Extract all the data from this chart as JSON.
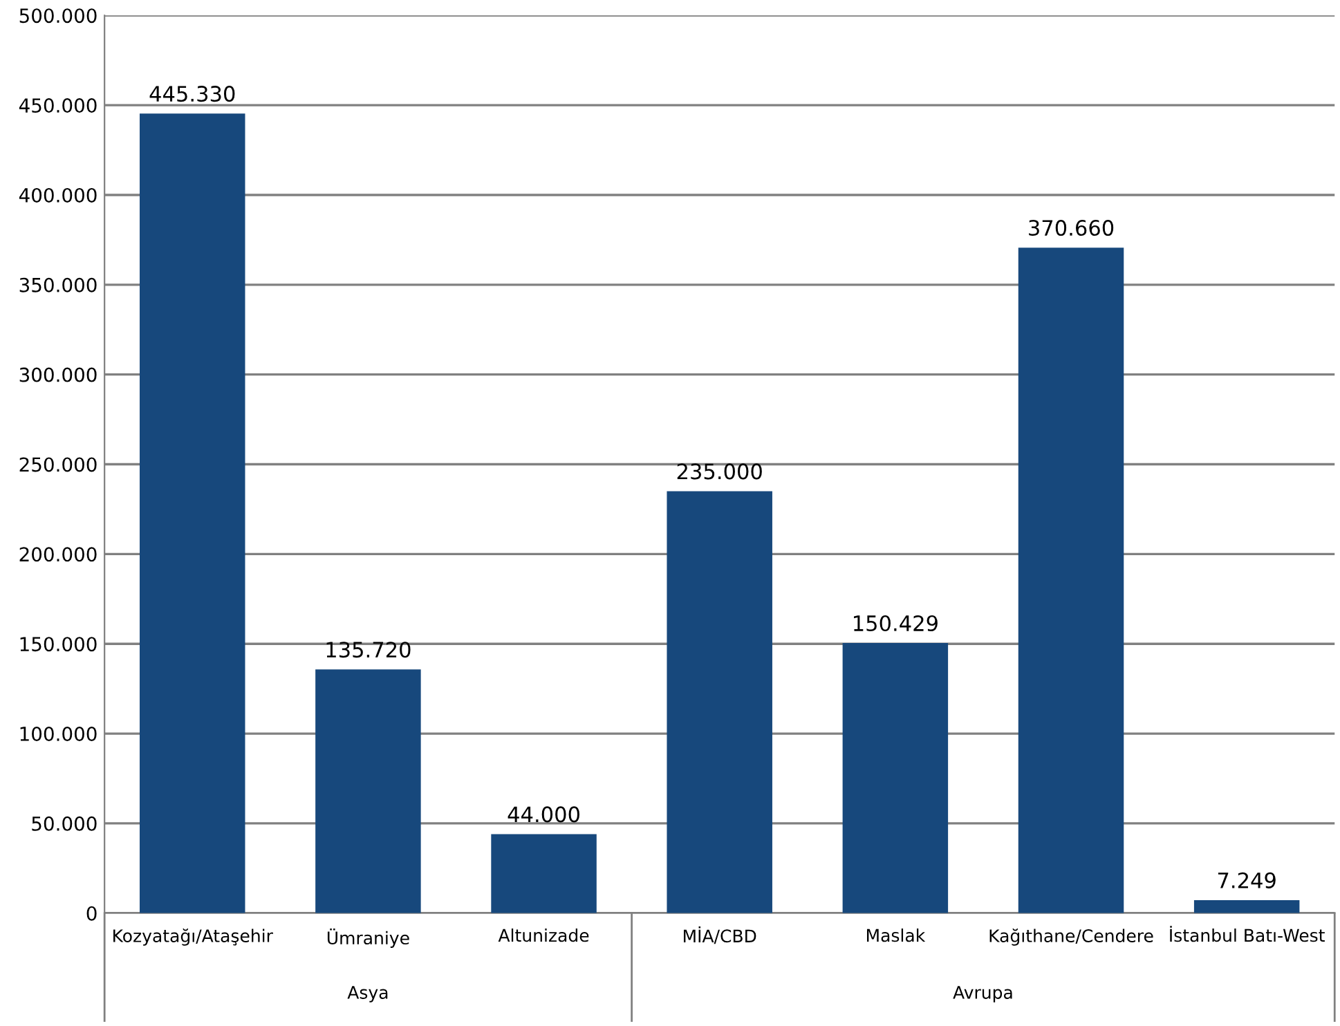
{
  "chart_data": {
    "type": "bar",
    "categories": [
      "Kozyatağı/Ataşehir",
      "Ümraniye",
      "Altunizade",
      "MİA/CBD",
      "Maslak",
      "Kağıthane/Cendere",
      "İstanbul Batı-West"
    ],
    "values": [
      445330,
      135720,
      44000,
      235000,
      150429,
      370660,
      7249
    ],
    "value_labels": [
      "445.330",
      "135.720",
      "44.000",
      "235.000",
      "150.429",
      "370.660",
      "7.249"
    ],
    "color": "#17487c",
    "ylim": [
      0,
      500000
    ],
    "yticks": [
      0,
      {
        "value": 50000,
        "label": "50.000"
      },
      {
        "value": 100000,
        "label": "100.000"
      },
      {
        "value": 150000,
        "label": "150.000"
      },
      {
        "value": 200000,
        "label": "200.000"
      },
      {
        "value": 250000,
        "label": "250.000"
      },
      {
        "value": 300000,
        "label": "300.000"
      },
      {
        "value": 350000,
        "label": "350.000"
      },
      {
        "value": 400000,
        "label": "400.000"
      },
      {
        "value": 450000,
        "label": "450.000"
      },
      {
        "value": 500000,
        "label": "500.000"
      }
    ],
    "grid": "y",
    "annotations": [
      "Asya",
      "Avrupa"
    ]
  }
}
